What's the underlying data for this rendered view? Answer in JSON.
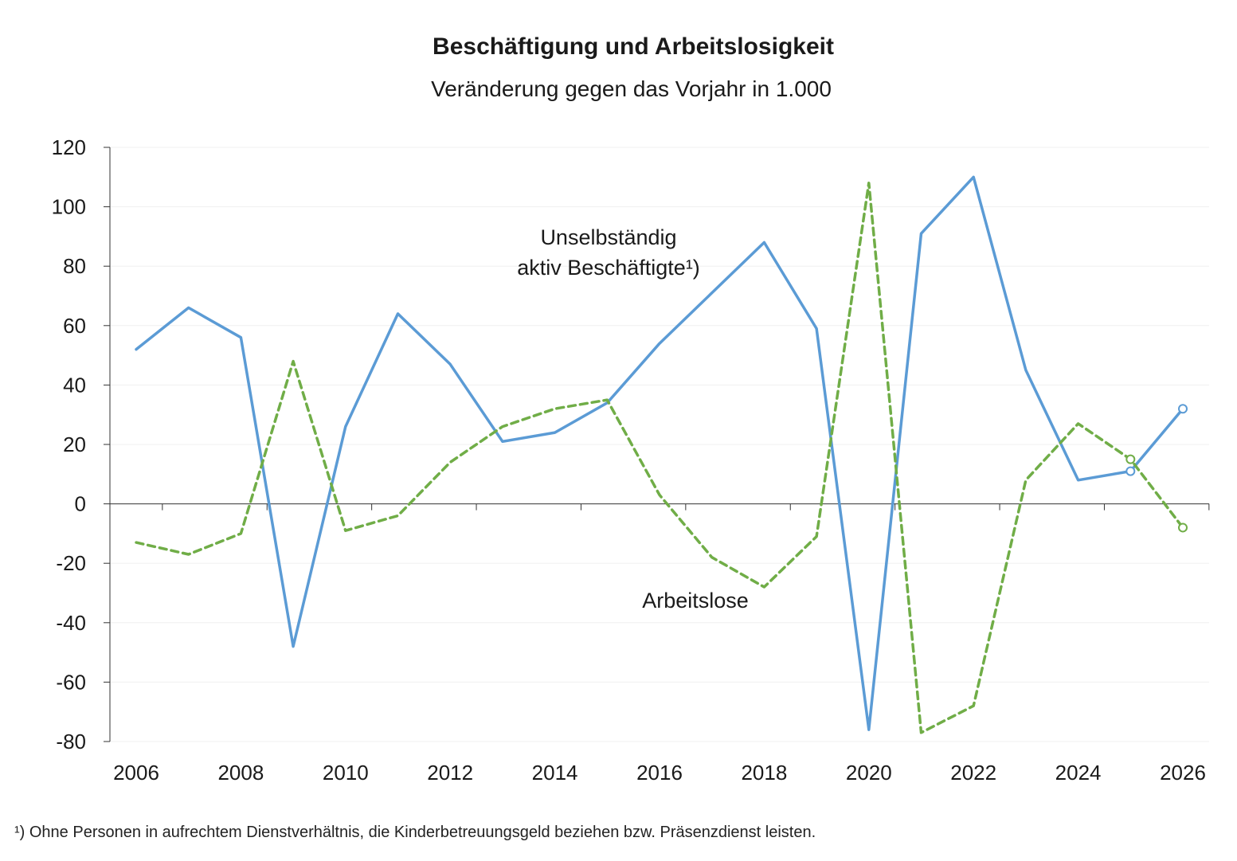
{
  "header": {
    "title": "Beschäftigung und Arbeitslosigkeit",
    "subtitle": "Veränderung gegen das Vorjahr in 1.000"
  },
  "footnote": "¹) Ohne Personen in aufrechtem Dienstverhältnis, die Kinderbetreuungsgeld beziehen bzw. Präsenzdienst leisten.",
  "chart_data": {
    "type": "line",
    "title": "Beschäftigung und Arbeitslosigkeit",
    "subtitle": "Veränderung gegen das Vorjahr in 1.000",
    "xlabel": "",
    "ylabel": "",
    "x": [
      2006,
      2007,
      2008,
      2009,
      2010,
      2011,
      2012,
      2013,
      2014,
      2015,
      2016,
      2017,
      2018,
      2019,
      2020,
      2021,
      2022,
      2023,
      2024,
      2025,
      2026
    ],
    "x_tick_labels": [
      "2006",
      "2008",
      "2010",
      "2012",
      "2014",
      "2016",
      "2018",
      "2020",
      "2022",
      "2024",
      "2026"
    ],
    "y_tick_labels": [
      "120",
      "100",
      "80",
      "60",
      "40",
      "20",
      "0",
      "-20",
      "-40",
      "-60",
      "-80"
    ],
    "xlim": [
      2006,
      2026
    ],
    "ylim": [
      -80,
      120
    ],
    "grid": true,
    "legend": "none",
    "forecast_from": 2025,
    "series": [
      {
        "name": "Unselbständig aktiv Beschäftigte¹)",
        "label_lines": [
          "Unselbständig",
          "aktiv Beschäftigte¹)"
        ],
        "color": "#5b9bd5",
        "style": "solid",
        "values": [
          52,
          66,
          56,
          -48,
          26,
          64,
          47,
          21,
          24,
          34,
          54,
          71,
          88,
          59,
          -76,
          91,
          110,
          45,
          8,
          11,
          32
        ]
      },
      {
        "name": "Arbeitslose",
        "label_lines": [
          "Arbeitslose"
        ],
        "color": "#70ad47",
        "style": "dashed",
        "values": [
          -13,
          -17,
          -10,
          48,
          -9,
          -4,
          14,
          26,
          32,
          35,
          3,
          -18,
          -28,
          -11,
          108,
          -77,
          -68,
          8,
          27,
          15,
          -8
        ]
      }
    ]
  }
}
